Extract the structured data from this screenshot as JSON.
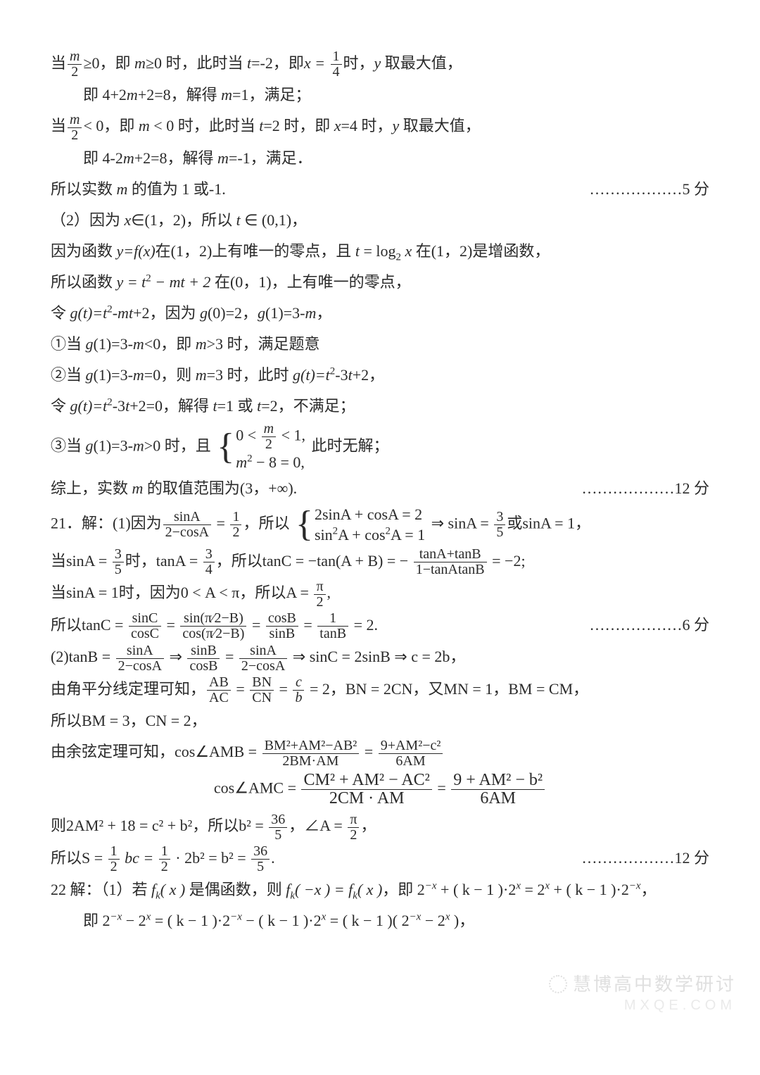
{
  "colors": {
    "text": "#2a2a2a",
    "bg": "#ffffff",
    "watermark": "#cfcfcf"
  },
  "typography": {
    "body_pt": 16,
    "line_height": 2.0,
    "family": "SimSun/STSong serif"
  },
  "p01a": "当",
  "p01_frac_num": "m",
  "p01_frac_den": "2",
  "p01b": "≥0，即 ",
  "p01c": "m",
  "p01d": "≥0 时，此时当 ",
  "p01e": "t",
  "p01f": "=-2，即",
  "p01g": "x = ",
  "p01_frac2_num": "1",
  "p01_frac2_den": "4",
  "p01h": "时，",
  "p01i": "y",
  "p01j": " 取最大值，",
  "p02": "即 4+2",
  "p02m": "m",
  "p02b": "+2=8，解得 ",
  "p02c": "m",
  "p02d": "=1，满足；",
  "p03a": "当",
  "p03_frac_num": "m",
  "p03_frac_den": "2",
  "p03b": "< 0，即 ",
  "p03c": "m",
  "p03d": " < 0 时，此时当 ",
  "p03e": "t",
  "p03f": "=2 时，即 ",
  "p03g": "x",
  "p03h": "=4 时，",
  "p03i": "y",
  "p03j": " 取最大值，",
  "p04": "即 4-2",
  "p04m": "m",
  "p04b": "+2=8，解得 ",
  "p04c": "m",
  "p04d": "=-1，满足．",
  "p05": "所以实数 ",
  "p05m": "m",
  "p05b": " 的值为 1 或-1.",
  "score5": "………………5 分",
  "p06": "（2）因为 ",
  "p06x": "x",
  "p06b": "∈(1，2)，所以 ",
  "p06t": "t",
  "p06c": " ∈ (0,1)，",
  "p07": "因为函数 ",
  "p07y": "y=f(x)",
  "p07b": "在(1，2)上有唯一的零点，且 ",
  "p07t": "t",
  "p07c": " = log",
  "p07sub": "2",
  "p07d": " x",
  "p07e": " 在(1，2)是增函数，",
  "p08": "所以函数 ",
  "p08y": "y = t",
  "p08sup": "2",
  "p08b": " − mt + 2",
  "p08c": " 在(0，1)，上有唯一的零点，",
  "p09": "令 ",
  "p09g": "g(t)=t",
  "p09sup": "2",
  "p09b": "-mt",
  "p09c": "+2，因为 ",
  "p09d": "g",
  "p09e": "(0)=2，",
  "p09f": "g",
  "p09h": "(1)=3-",
  "p09m": "m",
  "p09i": "，",
  "p10": "①当 ",
  "p10g": "g",
  "p10b": "(1)=3-",
  "p10m": "m",
  "p10c": "<0，即 ",
  "p10m2": "m",
  "p10d": ">3 时，满足题意",
  "p11": "②当 ",
  "p11g": "g",
  "p11b": "(1)=3-",
  "p11m": "m",
  "p11c": "=0，则 ",
  "p11m2": "m",
  "p11d": "=3 时，此时 ",
  "p11g2": "g(t)=t",
  "p11sup": "2",
  "p11e": "-3",
  "p11t": "t",
  "p11f": "+2，",
  "p12": "令 ",
  "p12g": "g(t)=t",
  "p12sup": "2",
  "p12b": "-3",
  "p12t": "t",
  "p12c": "+2=0，解得 ",
  "p12t2": "t",
  "p12d": "=1 或 ",
  "p12t3": "t",
  "p12e": "=2，不满足；",
  "p13": "③当 ",
  "p13g": "g",
  "p13b": "(1)=3-",
  "p13m": "m",
  "p13c": ">0 时，且",
  "brace_r1a": "0 < ",
  "brace_r1_num": "m",
  "brace_r1_den": "2",
  "brace_r1b": " < 1,",
  "brace_r2": "m",
  "brace_r2sup": "2",
  "brace_r2b": " − 8 = 0,",
  "p13d": " 此时无解；",
  "p14": "综上，实数 ",
  "p14m": "m",
  "p14b": " 的取值范围为(3，+∞).",
  "score12a": "………………12 分",
  "q21a": "21．解：(1)因为",
  "q21_fr1_num": "sinA",
  "q21_fr1_den": "2−cosA",
  "q21b": " = ",
  "q21_fr2_num": "1",
  "q21_fr2_den": "2",
  "q21c": "，所以",
  "q21_sys_r1": "2sinA + cosA = 2",
  "q21_sys_r2a": "sin",
  "q21_sys_r2sup": "2",
  "q21_sys_r2b": "A + cos",
  "q21_sys_r2sup2": "2",
  "q21_sys_r2c": "A = 1",
  "q21d": " ⇒ sinA = ",
  "q21_fr3_num": "3",
  "q21_fr3_den": "5",
  "q21e": "或sinA = 1，",
  "q21l2a": "当sinA = ",
  "q21l2_num": "3",
  "q21l2_den": "5",
  "q21l2b": "时，tanA = ",
  "q21l2_num2": "3",
  "q21l2_den2": "4",
  "q21l2c": "，所以tanC = −tan(A + B) = − ",
  "q21l2_num3": "tanA+tanB",
  "q21l2_den3": "1−tanAtanB",
  "q21l2d": " = −2;",
  "q21l3a": "当sinA = 1时，因为0 < A < π，所以A = ",
  "q21l3_num": "π",
  "q21l3_den": "2",
  "q21l3b": ",",
  "q21l4a": "所以tanC = ",
  "q21l4_n1": "sinC",
  "q21l4_d1": "cosC",
  "q21l4b": " = ",
  "q21l4_n2": "sin(π⁄2−B)",
  "q21l4_d2": "cos(π⁄2−B)",
  "q21l4c": " = ",
  "q21l4_n3": "cosB",
  "q21l4_d3": "sinB",
  "q21l4d": " = ",
  "q21l4_n4": "1",
  "q21l4_d4": "tanB",
  "q21l4e": " = 2.",
  "score6": "………………6 分",
  "q21p2a": "(2)tanB = ",
  "q21p2_n1": "sinA",
  "q21p2_d1": "2−cosA",
  "q21p2b": " ⇒ ",
  "q21p2_n2": "sinB",
  "q21p2_d2": "cosB",
  "q21p2c": " = ",
  "q21p2_n3": "sinA",
  "q21p2_d3": "2−cosA",
  "q21p2d": " ⇒ sinC = 2sinB ⇒ c = 2b，",
  "q21p3a": "由角平分线定理可知，",
  "q21p3_n1": "AB",
  "q21p3_d1": "AC",
  "q21p3b": " = ",
  "q21p3_n2": "BN",
  "q21p3_d2": "CN",
  "q21p3c": " = ",
  "q21p3_n3": "c",
  "q21p3_d3": "b",
  "q21p3d": " = 2，BN = 2CN，又MN = 1，BM = CM，",
  "q21p4": "所以BM = 3，CN = 2，",
  "q21p5a": "由余弦定理可知，cos∠AMB = ",
  "q21p5_n1": "BM²+AM²−AB²",
  "q21p5_d1": "2BM·AM",
  "q21p5b": " = ",
  "q21p5_n2": "9+AM²−c²",
  "q21p5_d2": "6AM",
  "q21p6a": "cos∠AMC = ",
  "q21p6_n1": "CM² + AM² − AC²",
  "q21p6_d1": "2CM · AM",
  "q21p6b": " = ",
  "q21p6_n2": "9 + AM² − b²",
  "q21p6_d2": "6AM",
  "q21p7a": "则2AM² + 18 = c² + b²，所以b² = ",
  "q21p7_n1": "36",
  "q21p7_d1": "5",
  "q21p7b": "，∠A = ",
  "q21p7_n2": "π",
  "q21p7_d2": "2",
  "q21p7c": "，",
  "q21p8a": "所以S = ",
  "q21p8_n1": "1",
  "q21p8_d1": "2",
  "q21p8b": " bc = ",
  "q21p8_n2": "1",
  "q21p8_d2": "2",
  "q21p8c": " · 2b² = b² = ",
  "q21p8_n3": "36",
  "q21p8_d3": "5",
  "q21p8d": ".",
  "score12b": "………………12 分",
  "q22a": "22 解：（1）若 ",
  "q22fk": "f",
  "q22k": "k",
  "q22x": "( x )",
  "q22b": " 是偶函数，则 ",
  "q22c": "f",
  "q22d": "( −x ) = f",
  "q22e": "( x )",
  "q22f": "，即 2",
  "q22sup_nx": "−x",
  "q22g": " + ( k − 1 )·2",
  "q22sup_x": "x",
  "q22h": " = 2",
  "q22i": " + ( k − 1 )·2",
  "q22j": "，",
  "q22l2a": "即 2",
  "q22l2b": " − 2",
  "q22l2c": " = ( k − 1 )·2",
  "q22l2d": " − ( k − 1 )·2",
  "q22l2e": " = ( k − 1 )( 2",
  "q22l2f": " − 2",
  "q22l2g": " )，",
  "wm1": "慧博高中数学研讨",
  "wm2": "MXQE.COM"
}
